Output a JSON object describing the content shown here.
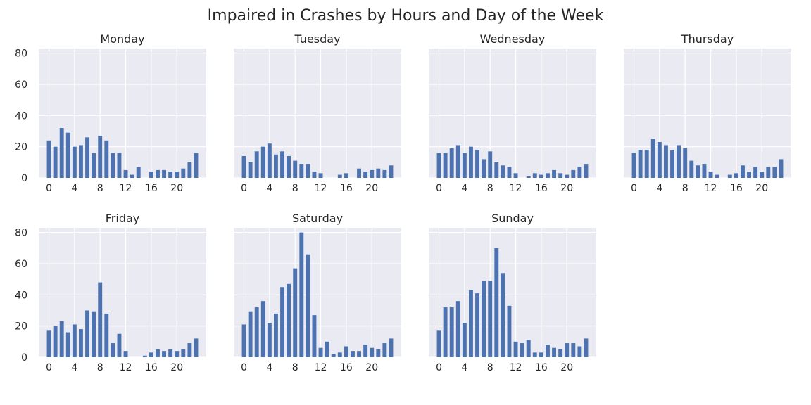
{
  "figure": {
    "title": "Impaired in Crashes by Hours and Day of the Week"
  },
  "colors": {
    "bar": "#4c72b0",
    "plot_background": "#eaeaf2",
    "grid": "#ffffff",
    "text": "#262626"
  },
  "chart_data": [
    {
      "type": "bar",
      "title": "Monday",
      "x": [
        0,
        1,
        2,
        3,
        4,
        5,
        6,
        7,
        8,
        9,
        10,
        11,
        12,
        13,
        14,
        15,
        16,
        17,
        18,
        19,
        20,
        21,
        22,
        23
      ],
      "values": [
        24,
        20,
        32,
        29,
        20,
        21,
        26,
        16,
        27,
        24,
        16,
        16,
        5,
        2,
        7,
        0,
        4,
        5,
        5,
        4,
        4,
        6,
        10,
        16
      ],
      "xticks": [
        0,
        4,
        8,
        12,
        16,
        20
      ],
      "yticks": [
        0,
        20,
        40,
        60,
        80
      ],
      "ylim": [
        0,
        83
      ],
      "grid": true
    },
    {
      "type": "bar",
      "title": "Tuesday",
      "x": [
        0,
        1,
        2,
        3,
        4,
        5,
        6,
        7,
        8,
        9,
        10,
        11,
        12,
        13,
        14,
        15,
        16,
        17,
        18,
        19,
        20,
        21,
        22,
        23
      ],
      "values": [
        14,
        10,
        17,
        20,
        22,
        15,
        17,
        14,
        11,
        9,
        9,
        4,
        3,
        0,
        0,
        2,
        3,
        0,
        6,
        4,
        5,
        6,
        5,
        8
      ],
      "xticks": [
        0,
        4,
        8,
        12,
        16,
        20
      ],
      "yticks": [
        0,
        20,
        40,
        60,
        80
      ],
      "ylim": [
        0,
        83
      ],
      "grid": true
    },
    {
      "type": "bar",
      "title": "Wednesday",
      "x": [
        0,
        1,
        2,
        3,
        4,
        5,
        6,
        7,
        8,
        9,
        10,
        11,
        12,
        13,
        14,
        15,
        16,
        17,
        18,
        19,
        20,
        21,
        22,
        23
      ],
      "values": [
        16,
        16,
        19,
        21,
        16,
        20,
        18,
        12,
        17,
        10,
        8,
        7,
        3,
        0,
        1,
        3,
        2,
        3,
        5,
        3,
        2,
        5,
        7,
        9
      ],
      "xticks": [
        0,
        4,
        8,
        12,
        16,
        20
      ],
      "yticks": [
        0,
        20,
        40,
        60,
        80
      ],
      "ylim": [
        0,
        83
      ],
      "grid": true
    },
    {
      "type": "bar",
      "title": "Thursday",
      "x": [
        0,
        1,
        2,
        3,
        4,
        5,
        6,
        7,
        8,
        9,
        10,
        11,
        12,
        13,
        14,
        15,
        16,
        17,
        18,
        19,
        20,
        21,
        22,
        23
      ],
      "values": [
        16,
        18,
        18,
        25,
        23,
        21,
        18,
        21,
        19,
        11,
        8,
        9,
        4,
        2,
        0,
        2,
        3,
        8,
        4,
        7,
        4,
        7,
        7,
        12
      ],
      "xticks": [
        0,
        4,
        8,
        12,
        16,
        20
      ],
      "yticks": [
        0,
        20,
        40,
        60,
        80
      ],
      "ylim": [
        0,
        83
      ],
      "grid": true
    },
    {
      "type": "bar",
      "title": "Friday",
      "x": [
        0,
        1,
        2,
        3,
        4,
        5,
        6,
        7,
        8,
        9,
        10,
        11,
        12,
        13,
        14,
        15,
        16,
        17,
        18,
        19,
        20,
        21,
        22,
        23
      ],
      "values": [
        17,
        20,
        23,
        16,
        21,
        18,
        30,
        29,
        48,
        28,
        9,
        15,
        4,
        0,
        0,
        1,
        3,
        5,
        4,
        5,
        4,
        5,
        9,
        12
      ],
      "xticks": [
        0,
        4,
        8,
        12,
        16,
        20
      ],
      "yticks": [
        0,
        20,
        40,
        60,
        80
      ],
      "ylim": [
        0,
        83
      ],
      "grid": true
    },
    {
      "type": "bar",
      "title": "Saturday",
      "x": [
        0,
        1,
        2,
        3,
        4,
        5,
        6,
        7,
        8,
        9,
        10,
        11,
        12,
        13,
        14,
        15,
        16,
        17,
        18,
        19,
        20,
        21,
        22,
        23
      ],
      "values": [
        21,
        29,
        32,
        36,
        22,
        28,
        45,
        47,
        57,
        80,
        66,
        27,
        6,
        10,
        2,
        3,
        7,
        4,
        4,
        8,
        6,
        5,
        9,
        12
      ],
      "xticks": [
        0,
        4,
        8,
        12,
        16,
        20
      ],
      "yticks": [
        0,
        20,
        40,
        60,
        80
      ],
      "ylim": [
        0,
        83
      ],
      "grid": true
    },
    {
      "type": "bar",
      "title": "Sunday",
      "x": [
        0,
        1,
        2,
        3,
        4,
        5,
        6,
        7,
        8,
        9,
        10,
        11,
        12,
        13,
        14,
        15,
        16,
        17,
        18,
        19,
        20,
        21,
        22,
        23
      ],
      "values": [
        17,
        32,
        32,
        36,
        22,
        43,
        41,
        49,
        49,
        70,
        54,
        33,
        10,
        9,
        11,
        3,
        3,
        8,
        6,
        5,
        9,
        9,
        7,
        12
      ],
      "xticks": [
        0,
        4,
        8,
        12,
        16,
        20
      ],
      "yticks": [
        0,
        20,
        40,
        60,
        80
      ],
      "ylim": [
        0,
        83
      ],
      "grid": true
    }
  ]
}
